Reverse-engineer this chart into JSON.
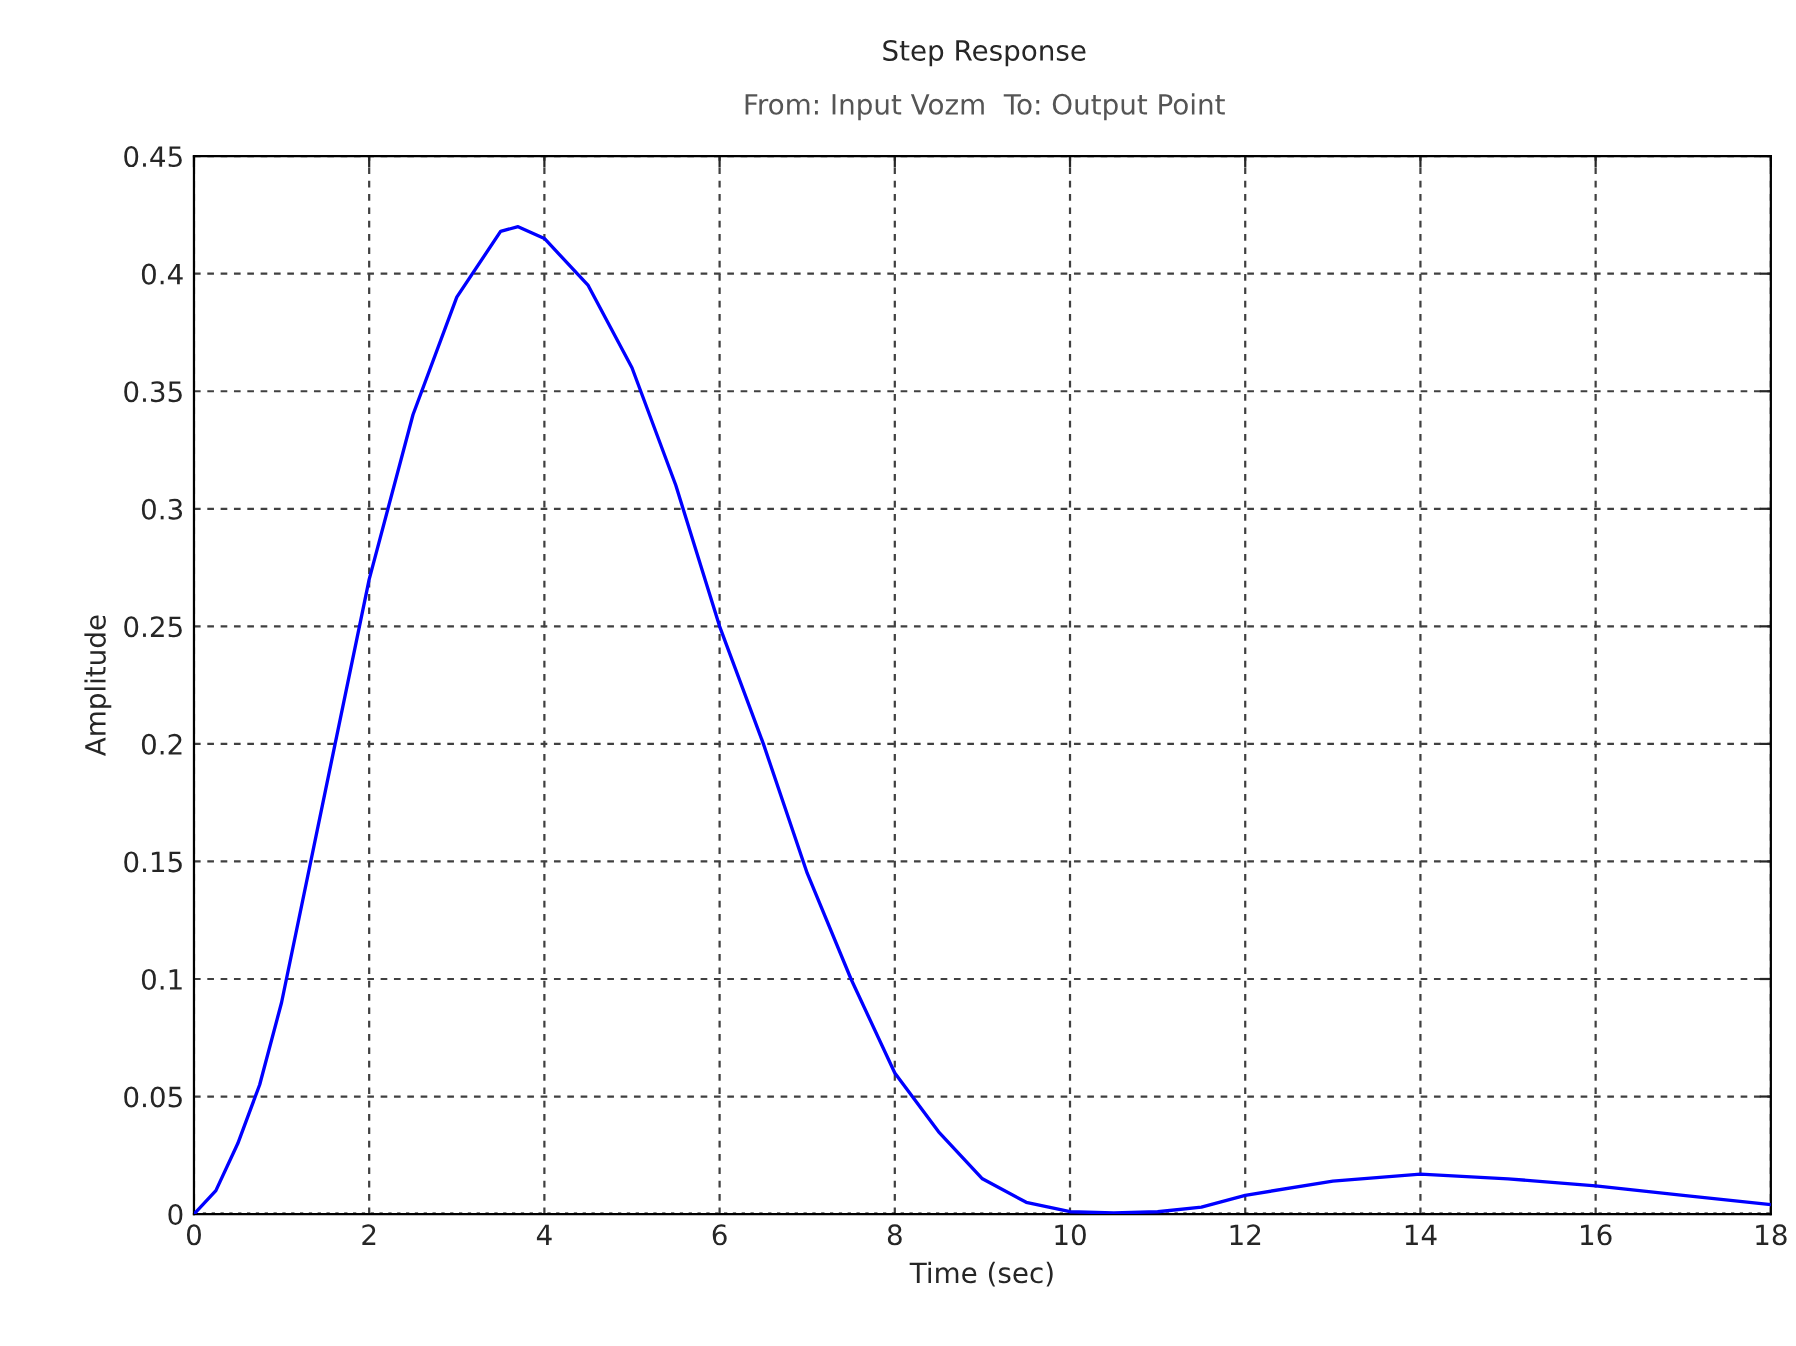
{
  "chart_data": {
    "type": "line",
    "title": "Step Response",
    "subtitle": "From: Input Vozm  To: Output Point",
    "xlabel": "Time (sec)",
    "ylabel": "Amplitude",
    "series": [
      {
        "color": "#0000ff",
        "x": [
          0,
          0.25,
          0.5,
          0.75,
          1,
          1.5,
          2,
          2.5,
          3,
          3.5,
          3.7,
          4,
          4.5,
          5,
          5.5,
          6,
          6.5,
          7,
          7.5,
          8,
          8.5,
          9,
          9.5,
          10,
          10.5,
          11,
          11.5,
          12,
          13,
          14,
          15,
          16,
          17,
          18
        ],
        "values": [
          0,
          0.01,
          0.03,
          0.055,
          0.09,
          0.18,
          0.27,
          0.34,
          0.39,
          0.418,
          0.42,
          0.415,
          0.395,
          0.36,
          0.31,
          0.25,
          0.2,
          0.145,
          0.1,
          0.06,
          0.035,
          0.015,
          0.005,
          0.001,
          0.0005,
          0.001,
          0.003,
          0.008,
          0.014,
          0.017,
          0.015,
          0.012,
          0.008,
          0.004
        ]
      }
    ],
    "xlim": [
      0,
      18
    ],
    "ylim": [
      0,
      0.45
    ],
    "xticks": [
      0,
      2,
      4,
      6,
      8,
      10,
      12,
      14,
      16,
      18
    ],
    "yticks": [
      0,
      0.05,
      0.1,
      0.15,
      0.2,
      0.25,
      0.3,
      0.35,
      0.4,
      0.45
    ],
    "ref_lines": [
      {
        "axis": "y",
        "value": 0,
        "color": "#000000",
        "line_style": "dotted"
      }
    ],
    "grid": true,
    "legend": false,
    "line_style": "solid",
    "marker": "none"
  }
}
